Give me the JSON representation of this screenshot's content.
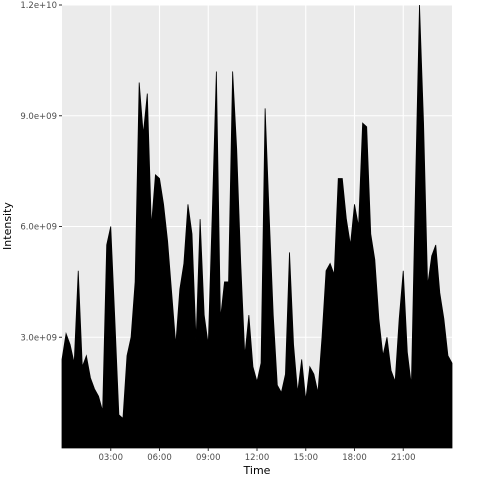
{
  "chart_data": {
    "type": "area",
    "x_label": "Time",
    "y_label": "Intensity",
    "color": "#000000",
    "grid": true,
    "xlim": [
      0,
      24
    ],
    "ylim": [
      0,
      12000000000.0
    ],
    "xticks": [
      {
        "value": 3,
        "label": "03:00"
      },
      {
        "value": 6,
        "label": "06:00"
      },
      {
        "value": 9,
        "label": "09:00"
      },
      {
        "value": 12,
        "label": "12:00"
      },
      {
        "value": 15,
        "label": "15:00"
      },
      {
        "value": 18,
        "label": "18:00"
      },
      {
        "value": 21,
        "label": "21:00"
      }
    ],
    "yticks": [
      {
        "value": 3000000000,
        "label": "3.0e+09"
      },
      {
        "value": 6000000000,
        "label": "6.0e+09"
      },
      {
        "value": 9000000000,
        "label": "9.0e+09"
      },
      {
        "value": 12000000000,
        "label": "1.2e+10"
      }
    ],
    "x": [
      0,
      0.25,
      0.5,
      0.75,
      1,
      1.25,
      1.5,
      1.75,
      2,
      2.25,
      2.5,
      2.75,
      3,
      3.25,
      3.5,
      3.75,
      4,
      4.25,
      4.5,
      4.75,
      5,
      5.25,
      5.5,
      5.75,
      6,
      6.25,
      6.5,
      6.75,
      7,
      7.25,
      7.5,
      7.75,
      8,
      8.25,
      8.5,
      8.75,
      9,
      9.25,
      9.5,
      9.75,
      10,
      10.25,
      10.5,
      10.75,
      11,
      11.25,
      11.5,
      11.75,
      12,
      12.25,
      12.5,
      12.75,
      13,
      13.25,
      13.5,
      13.75,
      14,
      14.25,
      14.5,
      14.75,
      15,
      15.25,
      15.5,
      15.75,
      16,
      16.25,
      16.5,
      16.75,
      17,
      17.25,
      17.5,
      17.75,
      18,
      18.25,
      18.5,
      18.75,
      19,
      19.25,
      19.5,
      19.75,
      20,
      20.25,
      20.5,
      20.75,
      21,
      21.25,
      21.5,
      21.75,
      22,
      22.25,
      22.5,
      22.75,
      23,
      23.25,
      23.5,
      23.75,
      24
    ],
    "values": [
      2400000000.0,
      3100000000.0,
      2800000000.0,
      2300000000.0,
      4800000000.0,
      2200000000.0,
      2500000000.0,
      1900000000.0,
      1600000000.0,
      1400000000.0,
      1000000000.0,
      5500000000.0,
      6000000000.0,
      3500000000.0,
      900000000.0,
      800000000.0,
      2500000000.0,
      3000000000.0,
      4500000000.0,
      9900000000.0,
      8500000000.0,
      9600000000.0,
      6000000000.0,
      7400000000.0,
      7300000000.0,
      6600000000.0,
      5600000000.0,
      4200000000.0,
      2800000000.0,
      4300000000.0,
      5000000000.0,
      6600000000.0,
      5800000000.0,
      2900000000.0,
      6200000000.0,
      3600000000.0,
      2800000000.0,
      6400000000.0,
      10200000000.0,
      3500000000.0,
      4500000000.0,
      4500000000.0,
      10200000000.0,
      8100000000.0,
      5000000000.0,
      2500000000.0,
      3600000000.0,
      2200000000.0,
      1800000000.0,
      2300000000.0,
      9200000000.0,
      6300000000.0,
      3600000000.0,
      1700000000.0,
      1500000000.0,
      2000000000.0,
      5300000000.0,
      2800000000.0,
      1500000000.0,
      2400000000.0,
      1300000000.0,
      2200000000.0,
      2000000000.0,
      1500000000.0,
      3000000000.0,
      4800000000.0,
      5000000000.0,
      4700000000.0,
      7300000000.0,
      7300000000.0,
      6200000000.0,
      5500000000.0,
      6600000000.0,
      6000000000.0,
      8800000000.0,
      8700000000.0,
      5800000000.0,
      5100000000.0,
      3500000000.0,
      2500000000.0,
      3000000000.0,
      2100000000.0,
      1800000000.0,
      3500000000.0,
      4800000000.0,
      2600000000.0,
      1700000000.0,
      7000000000.0,
      12000000000.0,
      8800000000.0,
      4400000000.0,
      5200000000.0,
      5500000000.0,
      4200000000.0,
      3500000000.0,
      2500000000.0,
      2300000000.0
    ]
  }
}
